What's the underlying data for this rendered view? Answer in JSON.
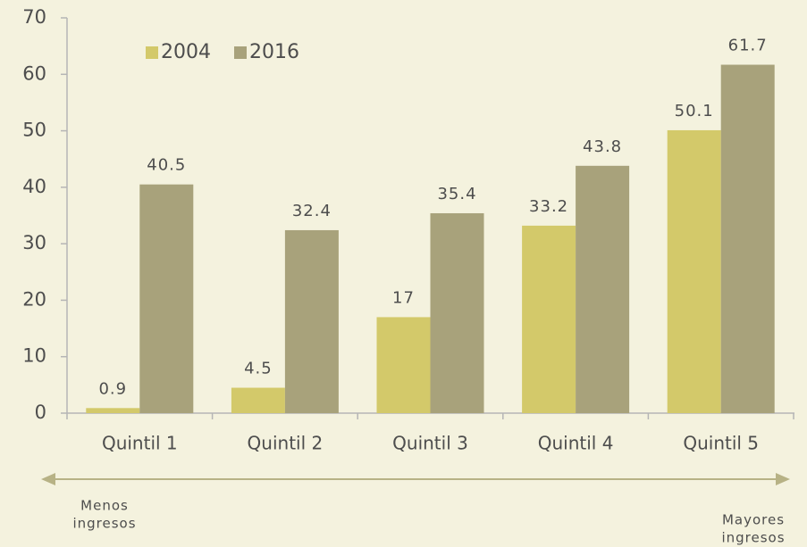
{
  "chart_data": {
    "type": "bar",
    "categories": [
      "Quintil 1",
      "Quintil 2",
      "Quintil 3",
      "Quintil 4",
      "Quintil 5"
    ],
    "series": [
      {
        "name": "2004",
        "color": "#d3c96a",
        "values": [
          0.9,
          4.5,
          17,
          33.2,
          50.1
        ]
      },
      {
        "name": "2016",
        "color": "#a8a27b",
        "values": [
          40.5,
          32.4,
          35.4,
          43.8,
          61.7
        ]
      }
    ],
    "ylim": [
      0,
      70
    ],
    "yticks": [
      0,
      10,
      20,
      30,
      40,
      50,
      60,
      70
    ],
    "legend": "top-left",
    "annotations": {
      "left": [
        "Menos",
        "ingresos"
      ],
      "right": [
        "Mayores",
        "ingresos"
      ]
    }
  }
}
